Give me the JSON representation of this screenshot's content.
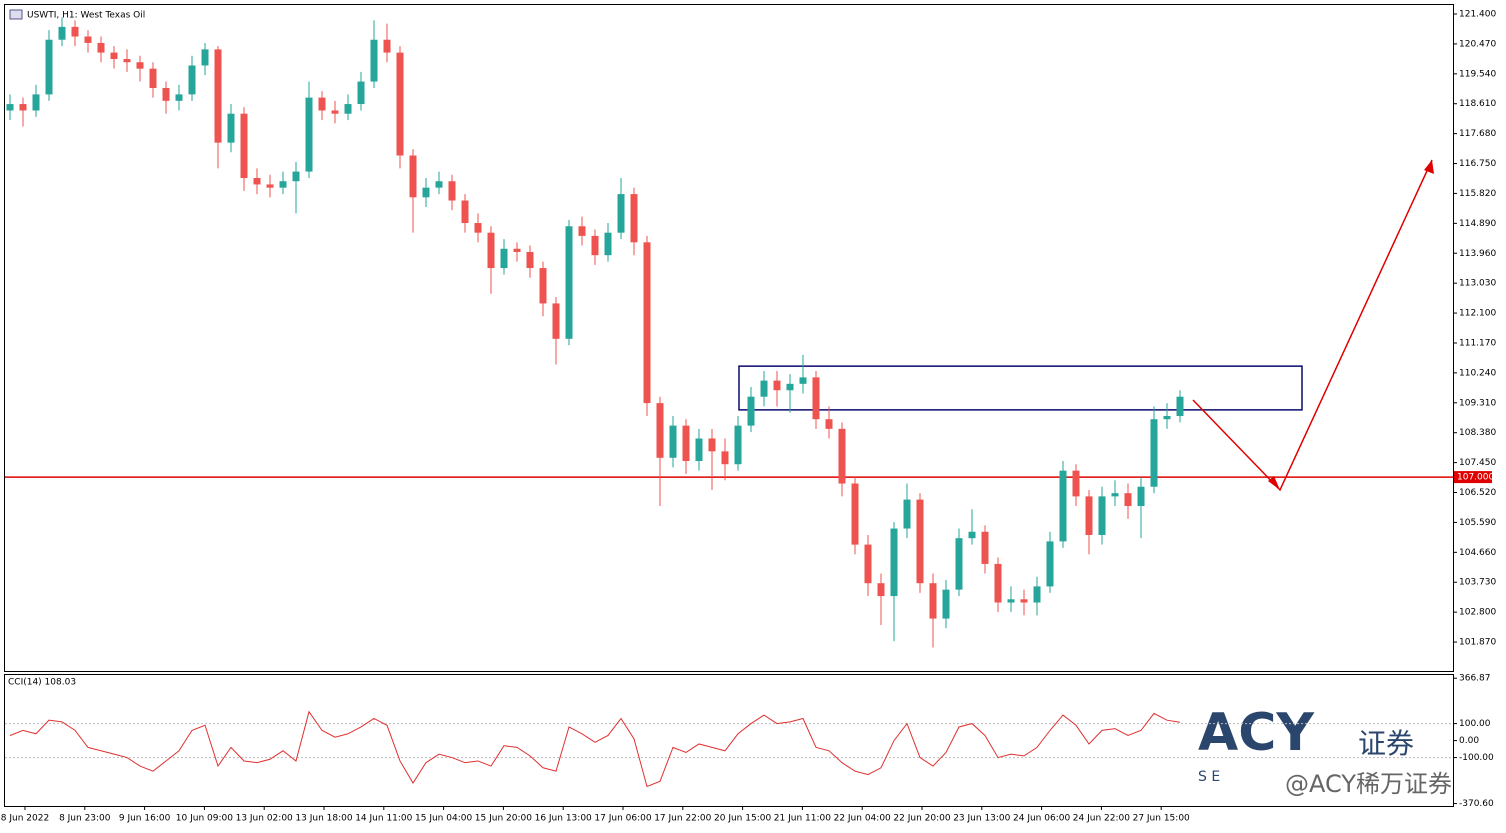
{
  "chart_data": {
    "type": "candlestick",
    "title": "USWTI, H1:  West Texas Oil",
    "x_labels": [
      "8 Jun 2022",
      "8 Jun 23:00",
      "9 Jun 16:00",
      "10 Jun 09:00",
      "13 Jun 02:00",
      "13 Jun 18:00",
      "14 Jun 11:00",
      "15 Jun 04:00",
      "15 Jun 20:00",
      "16 Jun 13:00",
      "17 Jun 06:00",
      "17 Jun 22:00",
      "20 Jun 15:00",
      "21 Jun 11:00",
      "22 Jun 04:00",
      "22 Jun 20:00",
      "23 Jun 13:00",
      "24 Jun 06:00",
      "24 Jun 22:00",
      "27 Jun 15:00"
    ],
    "open": [
      118.4,
      118.6,
      118.4,
      118.9,
      120.6,
      121.0,
      120.7,
      120.5,
      120.2,
      120.0,
      119.9,
      119.7,
      119.1,
      118.7,
      118.9,
      119.8,
      120.3,
      117.4,
      118.3,
      116.3,
      116.1,
      116.0,
      116.2,
      116.5,
      118.8,
      118.4,
      118.3,
      118.6,
      119.3,
      120.6,
      120.2,
      117.0,
      115.7,
      116.0,
      116.2,
      115.6,
      114.9,
      114.6,
      113.5,
      114.1,
      114.0,
      113.5,
      112.4,
      111.3,
      114.8,
      114.5,
      113.9,
      114.6,
      115.8,
      114.3,
      109.3,
      107.6,
      108.6,
      107.5,
      108.2,
      107.8,
      107.4,
      108.6,
      109.5,
      110.0,
      109.7,
      109.9,
      110.1,
      108.8,
      108.5,
      106.8,
      104.9,
      103.7,
      103.3,
      105.4,
      106.3,
      103.7,
      102.6,
      103.5,
      105.1,
      105.3,
      104.3,
      103.1,
      103.2,
      103.1,
      103.6,
      105.0,
      107.2,
      106.4,
      105.2,
      106.4,
      106.5,
      106.1,
      106.7,
      108.8,
      108.9
    ],
    "high": [
      118.9,
      118.8,
      119.2,
      120.9,
      121.3,
      121.2,
      120.9,
      120.7,
      120.4,
      120.3,
      120.1,
      119.9,
      119.3,
      119.2,
      120.1,
      120.5,
      120.4,
      118.6,
      118.5,
      116.6,
      116.4,
      116.5,
      116.8,
      119.3,
      119.0,
      118.7,
      118.9,
      119.6,
      121.2,
      121.1,
      120.4,
      117.2,
      116.3,
      116.5,
      116.4,
      115.8,
      115.2,
      114.8,
      114.4,
      114.3,
      114.2,
      113.7,
      112.6,
      115.0,
      115.1,
      114.7,
      114.9,
      116.3,
      116.0,
      114.5,
      109.5,
      108.9,
      108.8,
      108.5,
      108.5,
      108.2,
      108.9,
      109.8,
      110.3,
      110.3,
      110.2,
      110.8,
      110.3,
      109.2,
      108.7,
      107.0,
      105.2,
      104.0,
      105.6,
      106.8,
      106.5,
      104.0,
      103.8,
      105.4,
      106.0,
      105.5,
      104.5,
      103.6,
      103.5,
      103.9,
      105.3,
      107.5,
      107.4,
      106.6,
      106.7,
      106.9,
      106.8,
      107.0,
      109.2,
      109.3,
      109.7
    ],
    "low": [
      118.1,
      117.9,
      118.2,
      118.7,
      120.4,
      120.4,
      120.2,
      119.9,
      119.7,
      119.6,
      119.3,
      118.8,
      118.3,
      118.4,
      118.7,
      119.5,
      116.6,
      117.1,
      115.9,
      115.8,
      115.7,
      115.8,
      115.2,
      116.3,
      118.1,
      118.0,
      118.1,
      118.4,
      119.1,
      119.9,
      116.6,
      114.6,
      115.4,
      115.8,
      115.3,
      114.6,
      114.3,
      112.7,
      113.3,
      113.7,
      113.2,
      112.0,
      110.5,
      111.1,
      114.2,
      113.6,
      113.7,
      114.4,
      113.9,
      108.9,
      106.1,
      107.3,
      107.1,
      107.2,
      106.6,
      106.9,
      107.2,
      108.4,
      109.2,
      109.2,
      109.0,
      109.6,
      108.5,
      108.2,
      106.4,
      104.6,
      103.3,
      102.4,
      101.9,
      105.1,
      103.4,
      101.7,
      102.3,
      103.3,
      104.9,
      104.0,
      102.8,
      102.8,
      102.7,
      102.7,
      103.4,
      104.8,
      106.1,
      104.6,
      104.9,
      106.1,
      105.7,
      105.1,
      106.5,
      108.5,
      108.7
    ],
    "close": [
      118.6,
      118.4,
      118.9,
      120.6,
      121.0,
      120.7,
      120.5,
      120.2,
      120.0,
      119.9,
      119.7,
      119.1,
      118.7,
      118.9,
      119.8,
      120.3,
      117.4,
      118.3,
      116.3,
      116.1,
      116.0,
      116.2,
      116.5,
      118.8,
      118.4,
      118.3,
      118.6,
      119.3,
      120.6,
      120.2,
      117.0,
      115.7,
      116.0,
      116.2,
      115.6,
      114.9,
      114.6,
      113.5,
      114.1,
      114.0,
      113.5,
      112.4,
      111.3,
      114.8,
      114.5,
      113.9,
      114.6,
      115.8,
      114.3,
      109.3,
      107.6,
      108.6,
      107.5,
      108.2,
      107.8,
      107.4,
      108.6,
      109.5,
      110.0,
      109.7,
      109.9,
      110.1,
      108.8,
      108.5,
      106.8,
      104.9,
      103.7,
      103.3,
      105.4,
      106.3,
      103.7,
      102.6,
      103.5,
      105.1,
      105.3,
      104.3,
      103.1,
      103.2,
      103.1,
      103.6,
      105.0,
      107.2,
      106.4,
      105.2,
      106.4,
      106.5,
      106.1,
      106.7,
      108.8,
      108.9,
      109.5
    ],
    "up_color": "#26a69a",
    "down_color": "#ef5350",
    "ylim": [
      100.97,
      121.68
    ],
    "yticks": [
      {
        "value": 121.4,
        "label": "121.400"
      },
      {
        "value": 120.47,
        "label": "120.470"
      },
      {
        "value": 119.54,
        "label": "119.540"
      },
      {
        "value": 118.61,
        "label": "118.610"
      },
      {
        "value": 117.68,
        "label": "117.680"
      },
      {
        "value": 116.75,
        "label": "116.750"
      },
      {
        "value": 115.82,
        "label": "115.820"
      },
      {
        "value": 114.89,
        "label": "114.890"
      },
      {
        "value": 113.96,
        "label": "113.960"
      },
      {
        "value": 113.03,
        "label": "113.030"
      },
      {
        "value": 112.1,
        "label": "112.100"
      },
      {
        "value": 111.17,
        "label": "111.170"
      },
      {
        "value": 110.24,
        "label": "110.240"
      },
      {
        "value": 109.31,
        "label": "109.310"
      },
      {
        "value": 108.38,
        "label": "108.380"
      },
      {
        "value": 107.45,
        "label": "107.450"
      },
      {
        "value": 106.52,
        "label": "106.520"
      },
      {
        "value": 105.59,
        "label": "105.590"
      },
      {
        "value": 104.66,
        "label": "104.660"
      },
      {
        "value": 103.73,
        "label": "103.730"
      },
      {
        "value": 102.8,
        "label": "102.800"
      },
      {
        "value": 101.87,
        "label": "101.870"
      }
    ],
    "level": {
      "value": 107.0,
      "label": "107.000",
      "color": "#e00000"
    },
    "zone": [
      109.09,
      110.45
    ],
    "indicator": {
      "type": "line",
      "title": "CCI(14) 108.03",
      "color": "#e03030",
      "values": [
        30,
        60,
        40,
        120,
        110,
        60,
        -40,
        -60,
        -80,
        -100,
        -150,
        -180,
        -120,
        -60,
        60,
        90,
        -150,
        -40,
        -120,
        -130,
        -110,
        -60,
        -120,
        170,
        60,
        20,
        40,
        80,
        130,
        90,
        -120,
        -250,
        -130,
        -80,
        -100,
        -130,
        -120,
        -150,
        -30,
        -40,
        -90,
        -160,
        -180,
        80,
        40,
        -10,
        30,
        130,
        10,
        -270,
        -240,
        -40,
        -70,
        -20,
        -40,
        -60,
        40,
        100,
        150,
        100,
        110,
        130,
        -40,
        -60,
        -130,
        -180,
        -200,
        -160,
        0,
        100,
        -100,
        -150,
        -70,
        80,
        100,
        30,
        -100,
        -80,
        -90,
        -40,
        60,
        150,
        90,
        -20,
        60,
        70,
        30,
        60,
        160,
        120,
        108.03
      ],
      "ylim": [
        -385,
        380
      ],
      "yticks": [
        {
          "value": 366.87,
          "label": "366.87"
        },
        {
          "value": 100,
          "label": "100.00"
        },
        {
          "value": 0,
          "label": "0.00"
        },
        {
          "value": -100,
          "label": "-100.00"
        },
        {
          "value": -370.6,
          "label": "-370.60"
        }
      ],
      "levels": [
        100,
        -100
      ]
    }
  },
  "watermark": {
    "logo": "ACY",
    "logo_sub": "证券",
    "letters": "S E",
    "handle": "@ACY稀万证券"
  }
}
